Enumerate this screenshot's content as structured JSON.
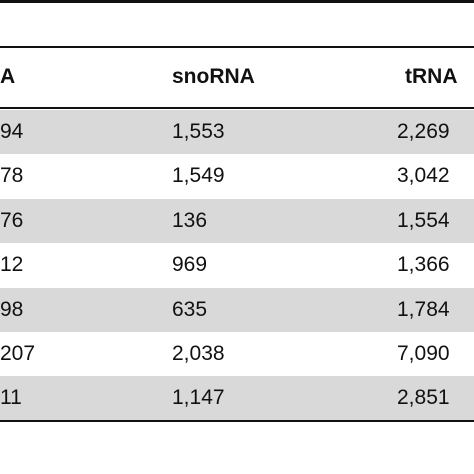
{
  "table": {
    "headers": [
      "A",
      "snoRNA",
      "tRNA"
    ],
    "rows": [
      [
        "94",
        "1,553",
        "2,269"
      ],
      [
        "78",
        "1,549",
        "3,042"
      ],
      [
        "76",
        "136",
        "1,554"
      ],
      [
        "12",
        "969",
        "1,366"
      ],
      [
        "98",
        "635",
        "1,784"
      ],
      [
        "207",
        "2,038",
        "7,090"
      ],
      [
        "11",
        "1,147",
        "2,851"
      ]
    ]
  }
}
